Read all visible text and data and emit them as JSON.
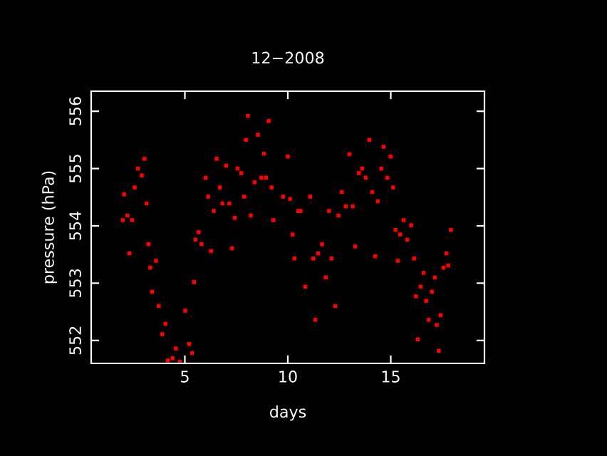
{
  "chart_data": {
    "type": "scatter",
    "title": "12−2008",
    "xlabel": "days",
    "ylabel": "pressure (hPa)",
    "xlim": [
      0.45,
      19.55
    ],
    "xticks": [
      5,
      10,
      15
    ],
    "ylim": [
      551.6,
      556.35
    ],
    "yticks": [
      552,
      553,
      554,
      555,
      556
    ],
    "grid": false,
    "legend": false,
    "marker": "square",
    "series": [
      {
        "color": "#ff0000",
        "x": [
          1.98,
          2.05,
          2.21,
          2.31,
          2.44,
          2.56,
          2.72,
          2.91,
          3.04,
          3.14,
          3.23,
          3.32,
          3.41,
          3.6,
          3.73,
          3.9,
          4.06,
          4.17,
          4.4,
          4.56,
          4.75,
          5.02,
          5.21,
          5.35,
          5.44,
          5.51,
          5.67,
          5.81,
          6.01,
          6.13,
          6.27,
          6.4,
          6.54,
          6.7,
          6.82,
          7.0,
          7.16,
          7.28,
          7.42,
          7.56,
          7.74,
          7.88,
          7.97,
          8.06,
          8.2,
          8.38,
          8.55,
          8.71,
          8.84,
          8.94,
          9.07,
          9.21,
          9.3,
          9.77,
          10.0,
          10.11,
          10.23,
          10.32,
          10.51,
          10.62,
          10.85,
          11.08,
          11.24,
          11.34,
          11.47,
          11.66,
          11.84,
          12.0,
          12.12,
          12.3,
          12.46,
          12.62,
          12.81,
          12.99,
          13.15,
          13.27,
          13.45,
          13.61,
          13.78,
          13.96,
          14.1,
          14.24,
          14.37,
          14.54,
          14.65,
          14.83,
          14.99,
          15.11,
          15.23,
          15.34,
          15.46,
          15.62,
          15.8,
          15.99,
          16.13,
          16.22,
          16.31,
          16.45,
          16.59,
          16.72,
          16.84,
          17.0,
          17.14,
          17.23,
          17.33,
          17.42,
          17.56,
          17.7,
          17.79,
          17.92
        ],
        "values": [
          554.1,
          554.55,
          554.18,
          553.52,
          554.1,
          554.67,
          555.0,
          554.88,
          555.17,
          554.39,
          553.68,
          553.27,
          552.85,
          553.39,
          552.6,
          552.11,
          552.29,
          551.65,
          551.69,
          551.86,
          551.63,
          552.52,
          551.94,
          551.78,
          553.02,
          553.76,
          553.89,
          553.68,
          554.84,
          554.51,
          553.56,
          554.26,
          555.17,
          554.67,
          554.39,
          555.05,
          554.39,
          553.61,
          554.14,
          555.0,
          554.92,
          554.51,
          555.5,
          555.92,
          554.18,
          554.76,
          555.59,
          554.84,
          555.26,
          554.84,
          555.83,
          554.67,
          554.1,
          554.51,
          555.21,
          554.47,
          553.85,
          553.43,
          554.26,
          554.26,
          552.94,
          554.51,
          553.43,
          552.36,
          553.52,
          553.68,
          553.1,
          554.26,
          553.43,
          552.6,
          554.18,
          554.59,
          554.34,
          555.25,
          554.34,
          553.64,
          554.92,
          555.0,
          554.84,
          555.5,
          554.59,
          553.47,
          554.43,
          555.0,
          555.38,
          554.84,
          555.21,
          554.67,
          553.93,
          553.39,
          553.85,
          554.1,
          553.76,
          554.01,
          553.43,
          552.77,
          552.02,
          552.94,
          553.18,
          552.69,
          552.36,
          552.85,
          553.1,
          552.27,
          551.82,
          552.44,
          553.27,
          553.52,
          553.31,
          553.93
        ]
      }
    ]
  }
}
